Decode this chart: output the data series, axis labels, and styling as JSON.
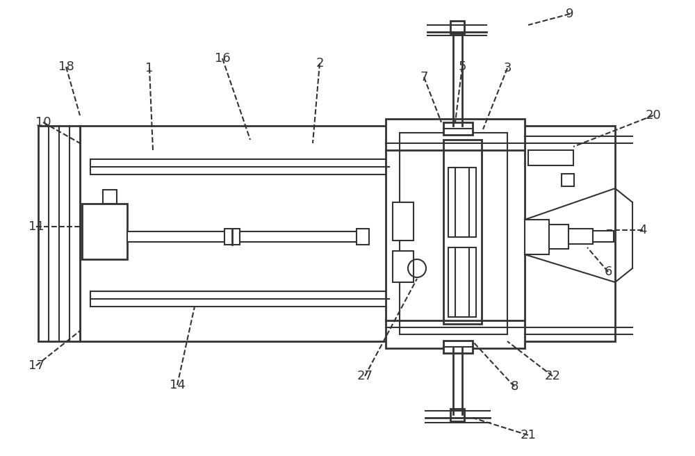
{
  "bg_color": "#ffffff",
  "line_color": "#333333",
  "lw": 1.5,
  "lw_thick": 2.0,
  "fig_width": 10.0,
  "fig_height": 6.56
}
